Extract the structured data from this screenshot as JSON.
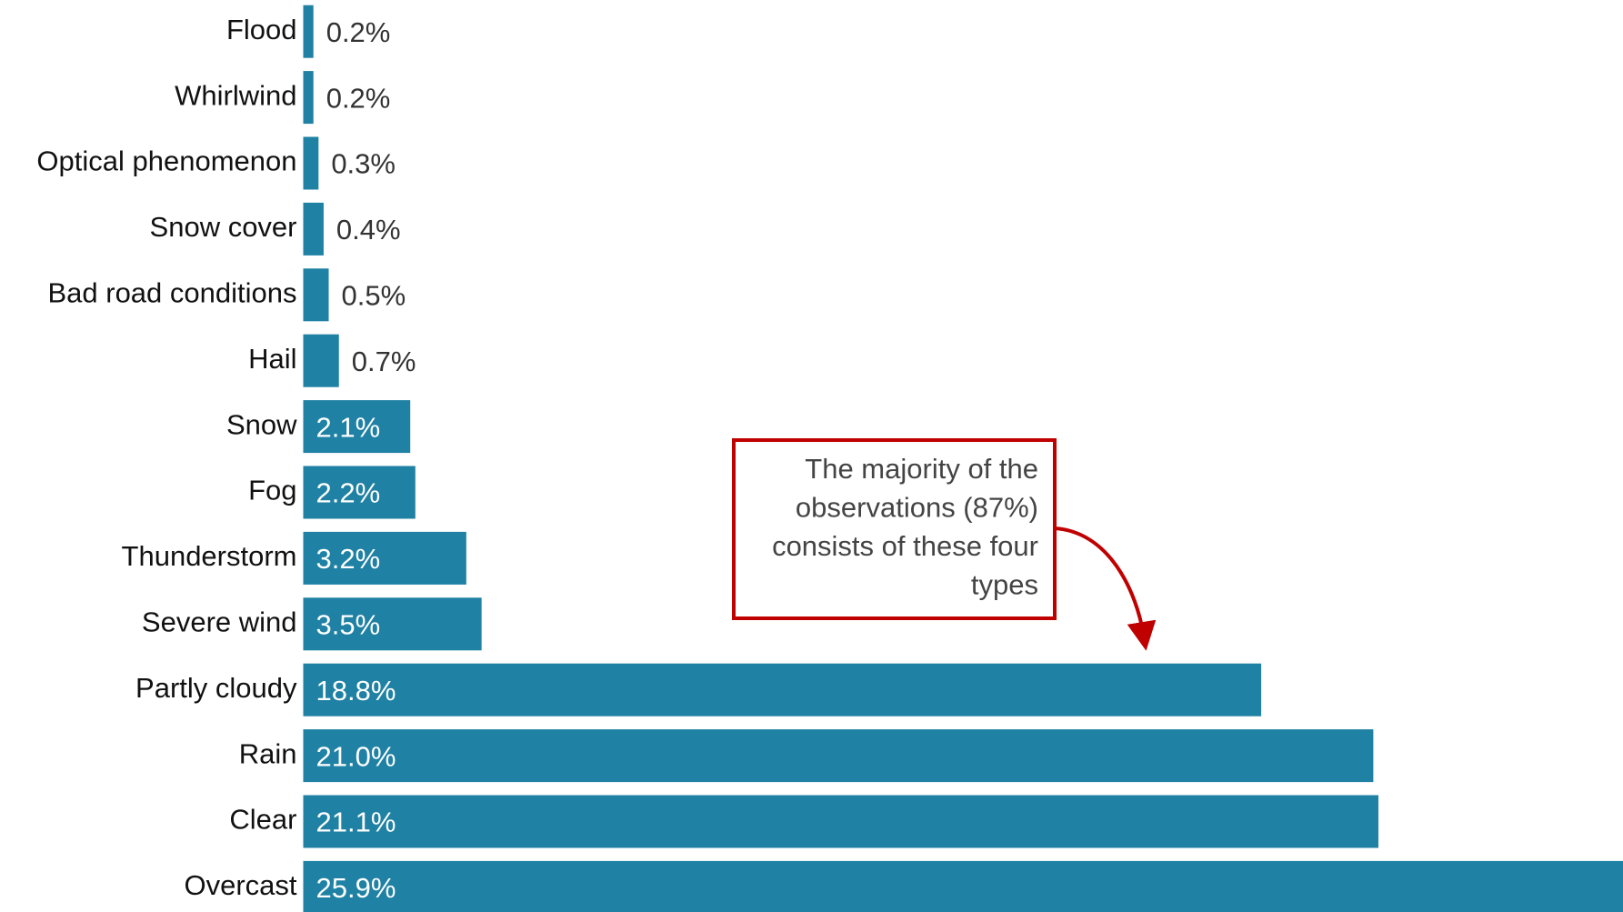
{
  "chart_data": {
    "type": "bar",
    "orientation": "horizontal",
    "categories": [
      "Flood",
      "Whirlwind",
      "Optical phenomenon",
      "Snow cover",
      "Bad road conditions",
      "Hail",
      "Snow",
      "Fog",
      "Thunderstorm",
      "Severe wind",
      "Partly cloudy",
      "Rain",
      "Clear",
      "Overcast"
    ],
    "values": [
      0.2,
      0.2,
      0.3,
      0.4,
      0.5,
      0.7,
      2.1,
      2.2,
      3.2,
      3.5,
      18.8,
      21.0,
      21.1,
      25.9
    ],
    "value_labels": [
      "0.2%",
      "0.2%",
      "0.3%",
      "0.4%",
      "0.5%",
      "0.7%",
      "2.1%",
      "2.2%",
      "3.2%",
      "3.5%",
      "18.8%",
      "21.0%",
      "21.1%",
      "25.9%"
    ],
    "color": "#1f81a3",
    "annotation": [
      "The majority of the",
      "observations (87%)",
      "consists of these four",
      "types"
    ]
  }
}
